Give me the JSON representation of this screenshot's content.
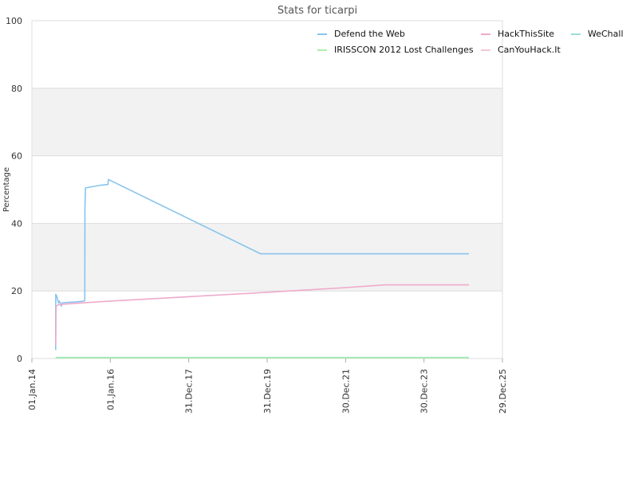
{
  "chart_data": {
    "type": "line",
    "title": "Stats for ticarpi",
    "xlabel": "",
    "ylabel": "Percentage",
    "ylim": [
      0,
      100
    ],
    "xlim": [
      "2014-01-01",
      "2025-12-29"
    ],
    "yticks": [
      0,
      20,
      40,
      60,
      80,
      100
    ],
    "xticks": [
      {
        "date": "2014-01-01",
        "label": "01.Jan.14"
      },
      {
        "date": "2016-01-01",
        "label": "01.Jan.16"
      },
      {
        "date": "2017-12-31",
        "label": "31.Dec.17"
      },
      {
        "date": "2019-12-31",
        "label": "31.Dec.19"
      },
      {
        "date": "2021-12-30",
        "label": "30.Dec.21"
      },
      {
        "date": "2023-12-30",
        "label": "30.Dec.23"
      },
      {
        "date": "2025-12-29",
        "label": "29.Dec.25"
      }
    ],
    "grid": true,
    "legend": "top-right",
    "series": [
      {
        "name": "Defend the Web",
        "color": "#88c4ee",
        "points": [
          [
            "2014-08-10",
            2.5
          ],
          [
            "2014-08-11",
            19.0
          ],
          [
            "2014-08-20",
            18.5
          ],
          [
            "2014-08-28",
            17.5
          ],
          [
            "2014-09-05",
            16.5
          ],
          [
            "2014-09-15",
            17.0
          ],
          [
            "2014-10-01",
            15.5
          ],
          [
            "2014-10-10",
            16.5
          ],
          [
            "2015-03-01",
            16.8
          ],
          [
            "2015-05-01",
            17.0
          ],
          [
            "2015-05-08",
            17.2
          ],
          [
            "2015-05-10",
            44.5
          ],
          [
            "2015-05-15",
            50.5
          ],
          [
            "2015-10-01",
            51.3
          ],
          [
            "2015-12-10",
            51.5
          ],
          [
            "2015-12-15",
            53.0
          ],
          [
            "2019-11-01",
            31.0
          ],
          [
            "2025-02-20",
            31.0
          ]
        ]
      },
      {
        "name": "HackThisSite",
        "color": "#eeaacc",
        "points": [
          [
            "2014-08-10",
            4.0
          ],
          [
            "2014-08-15",
            15.5
          ],
          [
            "2014-09-10",
            16.0
          ],
          [
            "2016-01-01",
            17.0
          ],
          [
            "2018-01-01",
            18.3
          ],
          [
            "2020-01-01",
            19.6
          ],
          [
            "2022-01-01",
            21.0
          ],
          [
            "2023-01-01",
            21.8
          ],
          [
            "2025-02-20",
            21.8
          ]
        ]
      },
      {
        "name": "WeChall",
        "color": "#99dddd",
        "points": [
          [
            "2014-08-10",
            0.3
          ],
          [
            "2025-02-20",
            0.3
          ]
        ]
      },
      {
        "name": "IRISSCON 2012 Lost Challenges",
        "color": "#aaeeaa",
        "points": [
          [
            "2014-08-10",
            0.2
          ],
          [
            "2025-02-20",
            0.2
          ]
        ]
      },
      {
        "name": "CanYouHack.It",
        "color": "#f2c8d4",
        "points": []
      }
    ]
  }
}
